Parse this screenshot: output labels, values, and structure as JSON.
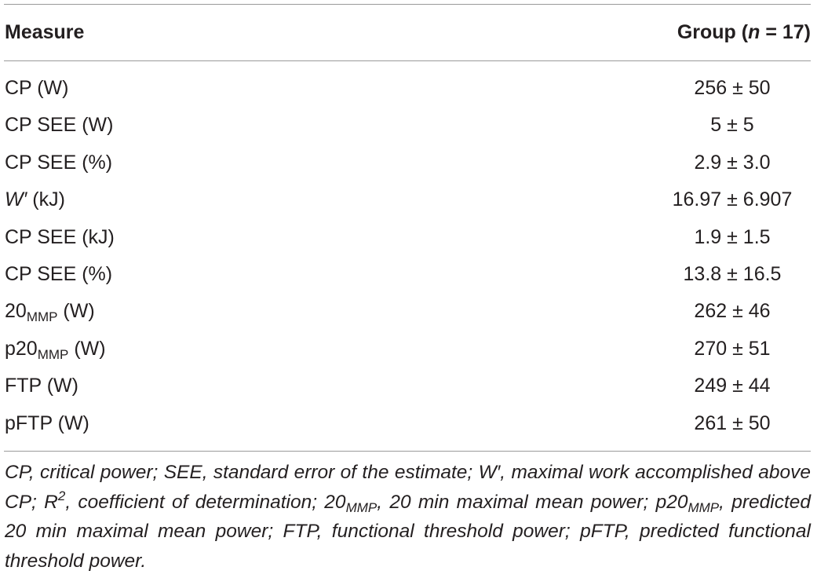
{
  "table": {
    "header": {
      "measure": "Measure",
      "group": [
        "Group (",
        "n",
        " = 17)"
      ]
    },
    "rows": [
      {
        "label": [
          "CP (W)"
        ],
        "value": "256 ± 50"
      },
      {
        "label": [
          "CP SEE (W)"
        ],
        "value": "5 ± 5"
      },
      {
        "label": [
          "CP SEE (%)"
        ],
        "value": "2.9 ± 3.0"
      },
      {
        "label": [
          "W′",
          " (kJ)"
        ],
        "value": "16.97 ± 6.907"
      },
      {
        "label": [
          "CP SEE (kJ)"
        ],
        "value": "1.9 ± 1.5"
      },
      {
        "label": [
          "CP SEE (%)"
        ],
        "value": "13.8 ± 16.5"
      },
      {
        "label": [
          "20",
          "MMP",
          " (W)"
        ],
        "value": "262 ± 46"
      },
      {
        "label": [
          "p20",
          "MMP",
          " (W)"
        ],
        "value": "270 ± 51"
      },
      {
        "label": [
          "FTP (W)"
        ],
        "value": "249 ± 44"
      },
      {
        "label": [
          "pFTP (W)"
        ],
        "value": "261 ± 50"
      }
    ],
    "footnote": [
      "CP, critical power; SEE, standard error of the estimate; W′, maximal work accomplished above CP; R",
      "2",
      ", coefficient of determination; 20",
      "MMP",
      ", 20 min maximal mean power; p20",
      "MMP",
      ", predicted 20 min maximal mean power; FTP, functional threshold power; pFTP, predicted functional threshold power."
    ]
  }
}
